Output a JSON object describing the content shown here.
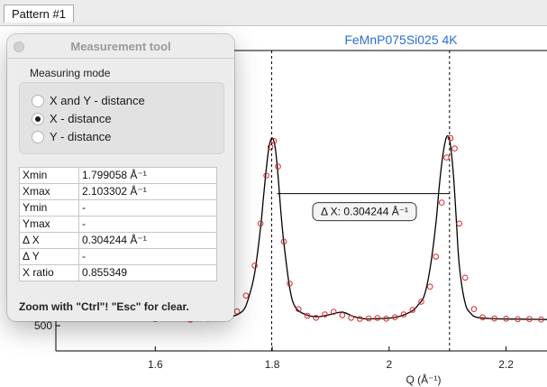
{
  "tab": {
    "label": "Pattern #1"
  },
  "chart_data": {
    "type": "line",
    "title": "FeMnP075Si025 4K",
    "xlabel": "Q (Å⁻¹)",
    "ylabel": "",
    "x_ticks": [
      "1.6",
      "1.8",
      "2",
      "2.2"
    ],
    "y_ticks": [
      "500"
    ],
    "xlim": [
      1.43,
      2.27
    ],
    "series": [
      {
        "kind": "fit",
        "style": "line",
        "color": "#000000",
        "x": [
          1.43,
          1.46,
          1.5,
          1.54,
          1.58,
          1.62,
          1.66,
          1.7,
          1.73,
          1.75,
          1.76,
          1.77,
          1.78,
          1.785,
          1.79,
          1.795,
          1.8,
          1.805,
          1.81,
          1.815,
          1.82,
          1.83,
          1.84,
          1.86,
          1.88,
          1.9,
          1.92,
          1.94,
          1.96,
          1.98,
          2.0,
          2.02,
          2.04,
          2.05,
          2.06,
          2.07,
          2.08,
          2.085,
          2.09,
          2.095,
          2.1,
          2.105,
          2.11,
          2.115,
          2.12,
          2.13,
          2.14,
          2.15,
          2.17,
          2.19,
          2.21,
          2.23,
          2.25,
          2.27
        ],
        "y": [
          550,
          548,
          546,
          545,
          544,
          543,
          542,
          546,
          560,
          600,
          690,
          850,
          1150,
          1350,
          1550,
          1700,
          1750,
          1690,
          1500,
          1250,
          1050,
          750,
          620,
          570,
          560,
          575,
          590,
          560,
          545,
          547,
          550,
          565,
          600,
          640,
          700,
          880,
          1180,
          1400,
          1580,
          1710,
          1765,
          1700,
          1500,
          1200,
          900,
          650,
          580,
          555,
          548,
          545,
          544,
          543,
          542,
          541
        ]
      },
      {
        "kind": "observed",
        "style": "markers",
        "color": "#d9262b",
        "x": [
          1.6,
          1.63,
          1.66,
          1.69,
          1.72,
          1.74,
          1.755,
          1.77,
          1.78,
          1.79,
          1.797,
          1.803,
          1.81,
          1.82,
          1.83,
          1.845,
          1.86,
          1.875,
          1.89,
          1.905,
          1.92,
          1.935,
          1.95,
          1.965,
          1.98,
          1.995,
          2.01,
          2.025,
          2.04,
          2.055,
          2.07,
          2.08,
          2.09,
          2.098,
          2.105,
          2.112,
          2.12,
          2.13,
          2.145,
          2.16,
          2.18,
          2.2,
          2.22,
          2.24,
          2.26
        ],
        "y": [
          545,
          552,
          540,
          548,
          556,
          595,
          700,
          900,
          1180,
          1500,
          1690,
          1730,
          1560,
          1060,
          780,
          610,
          566,
          552,
          575,
          592,
          570,
          552,
          545,
          548,
          551,
          546,
          556,
          575,
          605,
          660,
          760,
          960,
          1320,
          1620,
          1750,
          1680,
          1180,
          820,
          610,
          555,
          548,
          546,
          543,
          544,
          541
        ]
      }
    ],
    "annotation": {
      "label": "Δ X: 0.304244 Å⁻¹",
      "x_start": 1.799058,
      "x_end": 2.103302,
      "y": 1380
    }
  },
  "measurement_tool": {
    "title": "Measurement tool",
    "mode_group_label": "Measuring mode",
    "modes": [
      {
        "label": "X and Y - distance",
        "checked": false
      },
      {
        "label": "X - distance",
        "checked": true
      },
      {
        "label": "Y - distance",
        "checked": false
      }
    ],
    "rows": [
      {
        "key": "Xmin",
        "value": "1.799058 Å⁻¹"
      },
      {
        "key": "Xmax",
        "value": "2.103302 Å⁻¹"
      },
      {
        "key": "Ymin",
        "value": "-"
      },
      {
        "key": "Ymax",
        "value": "-"
      },
      {
        "key": "Δ X",
        "value": "0.304244 Å⁻¹"
      },
      {
        "key": "Δ Y",
        "value": "-"
      },
      {
        "key": "X ratio",
        "value": "0.855349"
      }
    ],
    "footer": "Zoom with \"Ctrl\"! \"Esc\" for clear."
  },
  "colors": {
    "title": "#2a6fd6",
    "observed": "#d9262b",
    "fit": "#000000"
  }
}
